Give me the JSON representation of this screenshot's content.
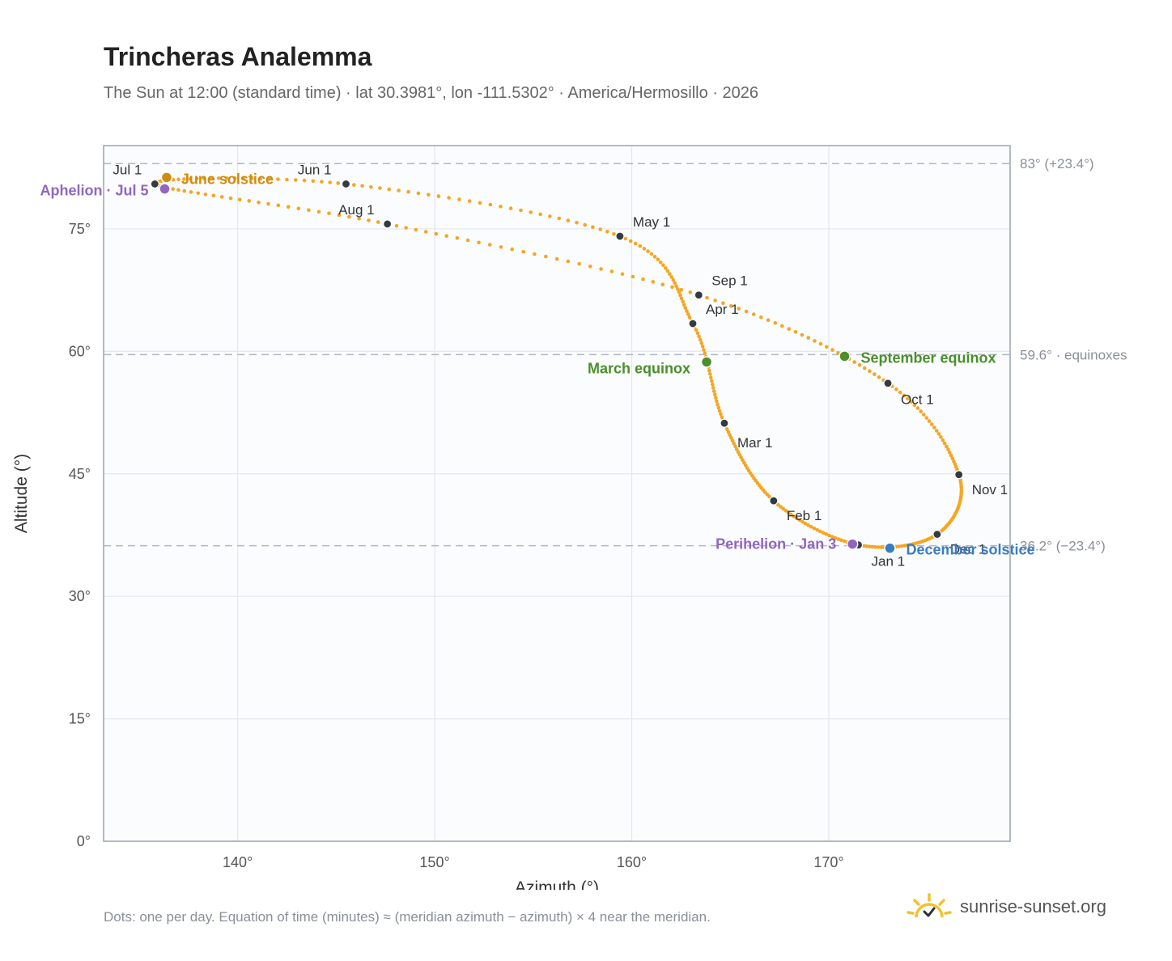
{
  "header": {
    "title": "Trincheras Analemma",
    "subtitle": "The Sun at 12:00 (standard time) · lat 30.3981°, lon -111.5302° · America/Hermosillo · 2026"
  },
  "footer": {
    "note": "Dots: one per day. Equation of time (minutes) ≈ (meridian azimuth − azimuth) × 4 near the meridian.",
    "brand": "sunrise-sunset.org"
  },
  "colors": {
    "curve": "#f5a623",
    "marker": "#333a44",
    "solstice_june": "#d08c0c",
    "solstice_december": "#3a7cc4",
    "equinox": "#4a8f2a",
    "apsis": "#9166c0",
    "reference_line": "#b0b8c4",
    "plot_bg": "#fafcfe",
    "grid": "#e3e8ee"
  },
  "chart_data": {
    "type": "scatter",
    "xlabel": "Azimuth (°)",
    "ylabel": "Altitude (°)",
    "xlim": [
      133.2,
      179.2
    ],
    "ylim": [
      0,
      85.2
    ],
    "x_ticks": [
      140,
      150,
      160,
      170
    ],
    "y_ticks": [
      0,
      15,
      30,
      45,
      60,
      75
    ],
    "grid": true,
    "reference_lines": [
      {
        "y": 83.0,
        "label": "83° (+23.4°)"
      },
      {
        "y": 59.6,
        "label": "59.6° · equinoxes"
      },
      {
        "y": 36.2,
        "label": "36.2° (−23.4°)"
      }
    ],
    "curve_points": [
      {
        "label": "Jan 1",
        "x": 171.5,
        "y": 36.3
      },
      {
        "label": "Feb 1",
        "x": 167.2,
        "y": 41.7
      },
      {
        "label": "Mar 1",
        "x": 164.7,
        "y": 51.2
      },
      {
        "label": "Apr 1",
        "x": 163.1,
        "y": 63.4
      },
      {
        "label": "May 1",
        "x": 159.4,
        "y": 74.1
      },
      {
        "label": "Jun 1",
        "x": 145.5,
        "y": 80.5
      },
      {
        "label": "Jul 1",
        "x": 135.8,
        "y": 80.5
      },
      {
        "label": "Aug 1",
        "x": 147.6,
        "y": 75.6
      },
      {
        "label": "Sep 1",
        "x": 163.4,
        "y": 66.9
      },
      {
        "label": "Oct 1",
        "x": 173.0,
        "y": 56.1
      },
      {
        "label": "Nov 1",
        "x": 176.6,
        "y": 44.9
      },
      {
        "label": "Dec 1",
        "x": 175.5,
        "y": 37.6
      }
    ],
    "events": [
      {
        "label": "June solstice",
        "x": 136.4,
        "y": 81.3,
        "color_key": "solstice_june"
      },
      {
        "label": "Aphelion · Jul 5",
        "x": 136.3,
        "y": 79.9,
        "color_key": "apsis"
      },
      {
        "label": "March equinox",
        "x": 163.8,
        "y": 58.7,
        "color_key": "equinox"
      },
      {
        "label": "September equinox",
        "x": 170.8,
        "y": 59.4,
        "color_key": "equinox"
      },
      {
        "label": "Perihelion · Jan 3",
        "x": 171.2,
        "y": 36.4,
        "color_key": "apsis"
      },
      {
        "label": "December solstice",
        "x": 173.1,
        "y": 35.9,
        "color_key": "solstice_december"
      }
    ]
  }
}
